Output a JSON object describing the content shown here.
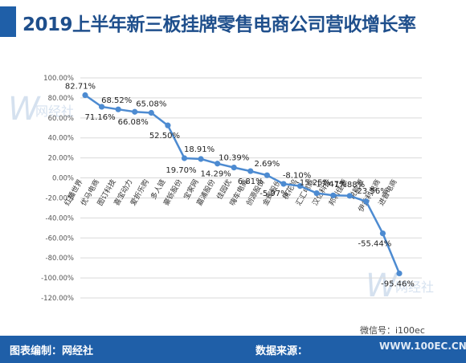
{
  "title": "2019上半年新三板挂牌零售电商公司营收增长率",
  "footer": {
    "left": "图表编制：网经社",
    "right": "数据来源：",
    "wechat": "微信号：i100ec",
    "site": "WWW.100EC.CN"
  },
  "watermark": "网经社",
  "chart_data": {
    "type": "line",
    "title": "2019上半年新三板挂牌零售电商公司营收增长率",
    "xlabel": "",
    "ylabel": "",
    "ylim": [
      -120,
      100
    ],
    "yticks": [
      "100.00%",
      "80.00%",
      "60.00%",
      "40.00%",
      "20.00%",
      "0.00%",
      "-20.00%",
      "-40.00%",
      "-60.00%",
      "-80.00%",
      "-100.00%",
      "-120.00%"
    ],
    "grid": true,
    "line_color": "#4d8bd1",
    "categories": [
      "红播世界",
      "优马电商",
      "图订科技",
      "喜宝动力",
      "爱折乐购",
      "多人链",
      "豪铄股份",
      "宝家网",
      "嘉浦股份",
      "佳园优",
      "嗨车电商",
      "创源股份",
      "金辉股份",
      "桃花坞",
      "汇汇电商",
      "汉亿科技",
      "邦利佳源",
      "悦能源",
      "伊益利电商",
      "进普电商"
    ],
    "values": [
      82.71,
      71.16,
      68.52,
      66.08,
      65.08,
      52.5,
      19.7,
      18.91,
      14.29,
      10.39,
      6.81,
      2.69,
      -5.97,
      -8.1,
      -15.25,
      -17.47,
      -17.88,
      -23.56,
      -55.44,
      -95.46
    ],
    "data_labels": [
      "82.71%",
      "71.16%",
      "68.52%",
      "66.08%",
      "65.08%",
      "52.50%",
      "19.70%",
      "18.91%",
      "14.29%",
      "10.39%",
      "6.81%",
      "2.69%",
      "-5.97%",
      "-8.10%",
      "-15.25%",
      "-17.47%",
      "-17.88%",
      "-23.56%",
      "-55.44%",
      "-95.46%"
    ]
  }
}
